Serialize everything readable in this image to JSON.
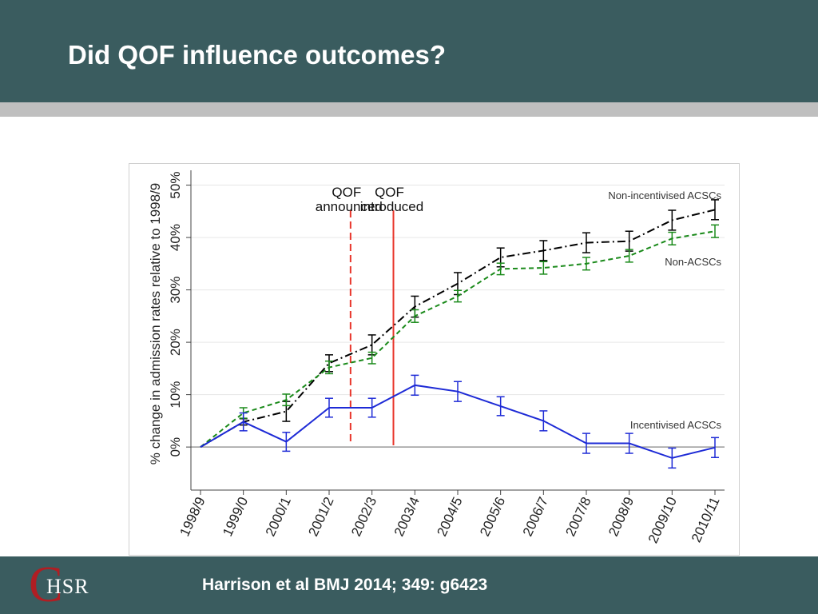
{
  "slide": {
    "title": "Did QOF influence outcomes?",
    "citation": "Harrison et al BMJ 2014; 349: g6423",
    "logo": {
      "letter": "C",
      "text": "HSR"
    },
    "colors": {
      "header": "#3a5c5f",
      "rule": "#bfbfbf",
      "logo_red": "#b01e23"
    }
  },
  "chart_data": {
    "type": "line",
    "ylabel": "% change in admission rates relative to 1998/9",
    "xlabel": "",
    "categories": [
      "1998/9",
      "1999/0",
      "2000/1",
      "2001/2",
      "2002/3",
      "2003/4",
      "2004/5",
      "2005/6",
      "2006/7",
      "2007/8",
      "2008/9",
      "2009/10",
      "2010/11"
    ],
    "ylim": [
      -7,
      51
    ],
    "yticks": [
      0,
      10,
      20,
      30,
      40,
      50
    ],
    "ytick_labels": [
      "0%",
      "10%",
      "20%",
      "30%",
      "40%",
      "50%"
    ],
    "grid": true,
    "series": [
      {
        "name": "Non-incentivised ACSCs",
        "color": "#000000",
        "dash": "10,4,2,4",
        "values": [
          0,
          4.8,
          6.8,
          16.0,
          19.5,
          26.8,
          31.2,
          36.2,
          37.5,
          39.0,
          39.3,
          43.3,
          45.3
        ],
        "errors": [
          0,
          0.6,
          1.9,
          1.6,
          1.9,
          2.0,
          2.1,
          1.8,
          1.9,
          1.9,
          1.9,
          1.9,
          1.9
        ]
      },
      {
        "name": "Non-ACSCs",
        "color": "#1a8a1a",
        "dash": "6,4",
        "values": [
          0,
          6.5,
          9.0,
          15.2,
          17.0,
          25.0,
          28.8,
          34.0,
          34.2,
          35.0,
          36.5,
          39.8,
          41.2
        ],
        "errors": [
          0,
          1.0,
          1.1,
          1.2,
          1.1,
          1.2,
          1.1,
          1.1,
          1.2,
          1.2,
          1.2,
          1.2,
          1.2
        ]
      },
      {
        "name": "Incentivised ACSCs",
        "color": "#1e2bd6",
        "dash": "",
        "values": [
          0,
          4.8,
          1.0,
          7.5,
          7.5,
          11.8,
          10.6,
          7.8,
          5.0,
          0.7,
          0.7,
          -2.1,
          -0.1
        ],
        "errors": [
          0,
          1.7,
          1.8,
          1.8,
          1.8,
          1.9,
          1.9,
          1.8,
          1.9,
          1.9,
          1.9,
          1.9,
          1.9
        ]
      }
    ],
    "vlines": [
      {
        "label_top": "QOF",
        "label_bottom": "announced",
        "x": 3.5,
        "color": "#e8352b",
        "style": "dashed"
      },
      {
        "label_top": "QOF",
        "label_bottom": "introduced",
        "x": 4.5,
        "color": "#e8352b",
        "style": "solid"
      }
    ]
  }
}
